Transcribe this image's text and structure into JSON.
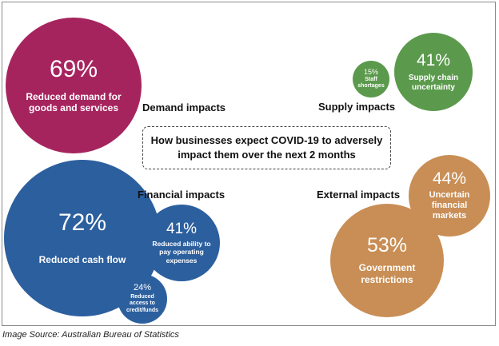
{
  "title": "How businesses expect COVID-19 to adversely impact them over the next 2 months",
  "categories": {
    "demand": "Demand impacts",
    "supply": "Supply impacts",
    "financial": "Financial impacts",
    "external": "External impacts"
  },
  "bubbles": {
    "demand_main": {
      "percent": "69%",
      "label": "Reduced demand for goods and services",
      "color": "#a6245e"
    },
    "supply_main": {
      "percent": "41%",
      "label": "Supply chain uncertainty",
      "color": "#5b9a4c"
    },
    "supply_small": {
      "percent": "15%",
      "label": "Staff shortages",
      "color": "#5b9a4c"
    },
    "financial_main": {
      "percent": "72%",
      "label": "Reduced cash flow",
      "color": "#2c5f9e"
    },
    "financial_mid": {
      "percent": "41%",
      "label": "Reduced ability to pay operating expenses",
      "color": "#2c5f9e"
    },
    "financial_small": {
      "percent": "24%",
      "label": "Reduced access to credit/funds",
      "color": "#2c5f9e"
    },
    "external_main": {
      "percent": "53%",
      "label": "Government restrictions",
      "color": "#c98e55"
    },
    "external_mid": {
      "percent": "44%",
      "label": "Uncertain financial markets",
      "color": "#c98e55"
    }
  },
  "caption": "Image Source: Australian Bureau of Statistics"
}
